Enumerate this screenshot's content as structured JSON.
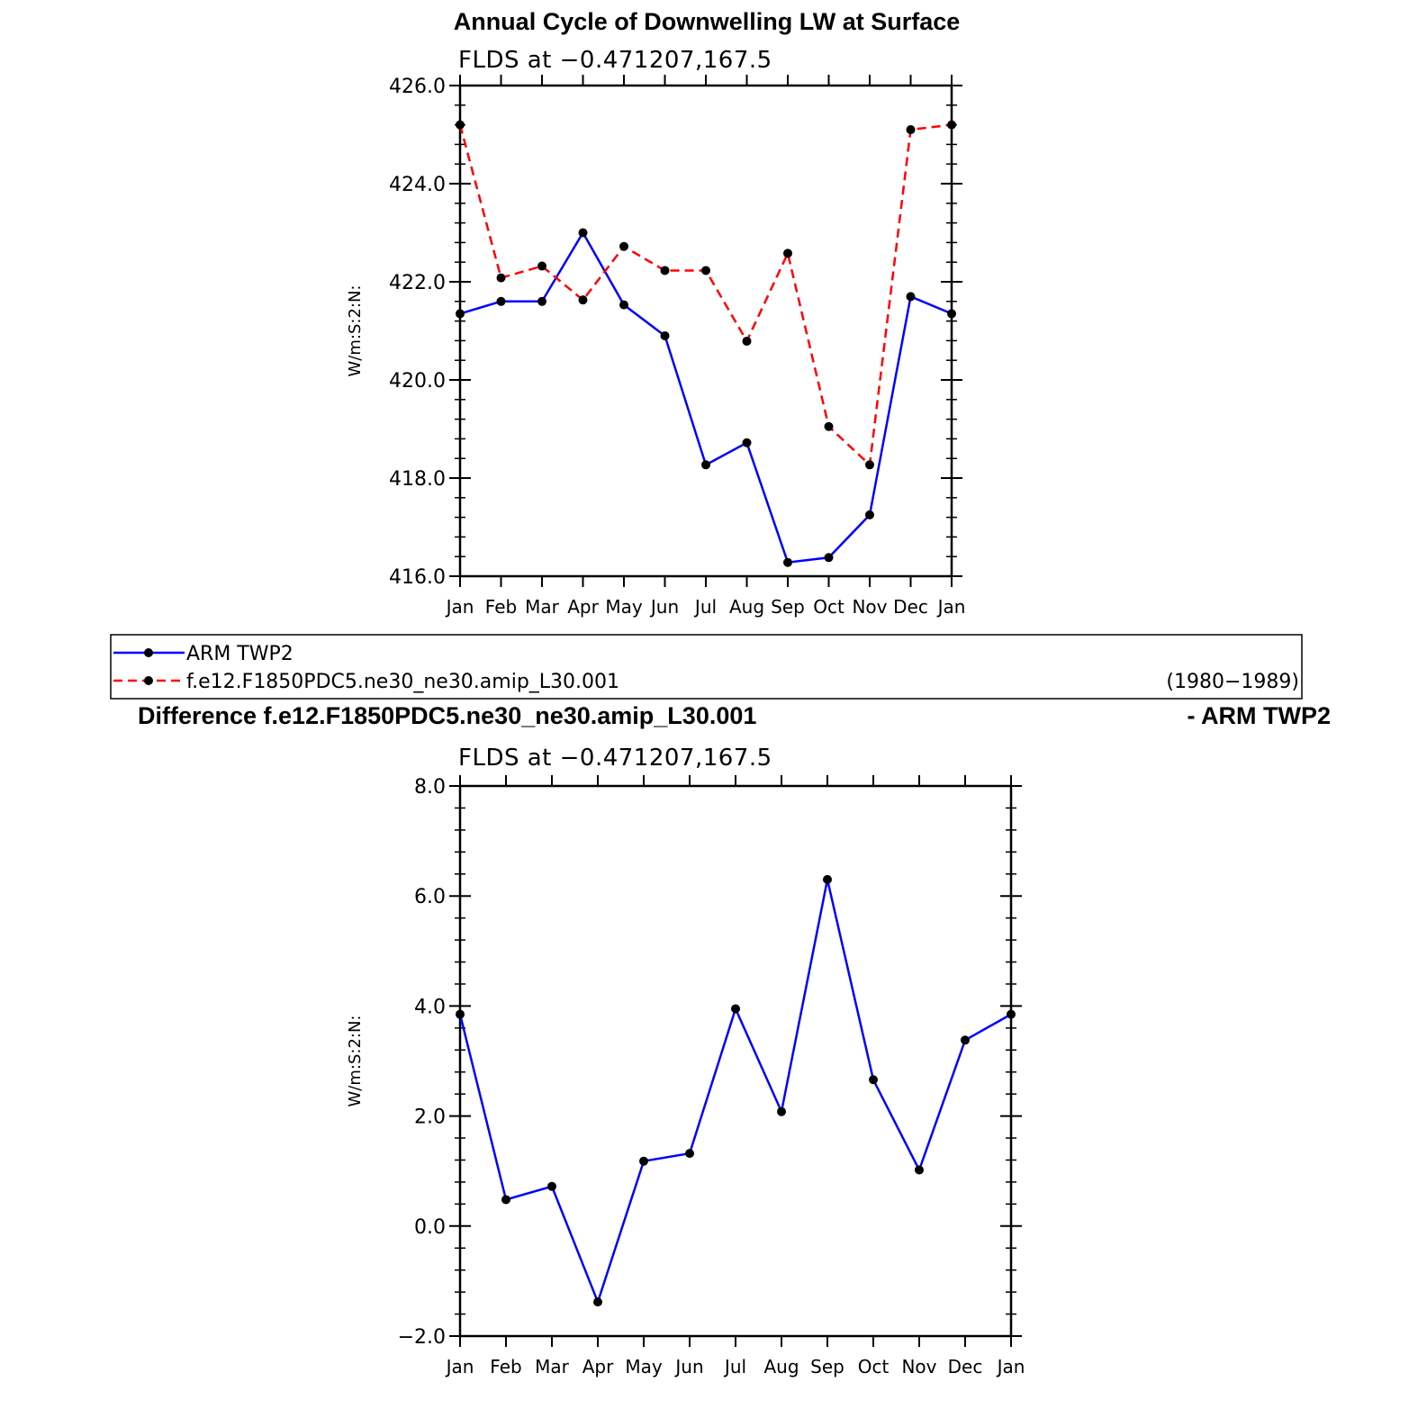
{
  "top_panel": {
    "title": "Annual Cycle of Downwelling LW at Surface",
    "subtitle": "FLDS at −0.471207,167.5"
  },
  "legend": {
    "entries": [
      {
        "label": "ARM TWP2",
        "color": "#0000ff",
        "dash": false
      },
      {
        "label": "f.e12.F1850PDC5.ne30_ne30.amip_L30.001",
        "color": "#ff0000",
        "dash": true
      }
    ],
    "period": "(1980−1989)"
  },
  "bottom_panel": {
    "title": "Difference f.e12.F1850PDC5.ne30_ne30.amip_L30.001",
    "title_right": "- ARM TWP2",
    "subtitle": "FLDS at −0.471207,167.5"
  },
  "chart_data": [
    {
      "type": "line",
      "title": "Annual Cycle of Downwelling LW at Surface",
      "subtitle": "FLDS at −0.471207,167.5",
      "categories": [
        "Jan",
        "Feb",
        "Mar",
        "Apr",
        "May",
        "Jun",
        "Jul",
        "Aug",
        "Sep",
        "Oct",
        "Nov",
        "Dec",
        "Jan"
      ],
      "ylabel": "W/m:S:2:N:",
      "ylim": [
        416,
        426
      ],
      "yticks": [
        416,
        418,
        420,
        422,
        424,
        426
      ],
      "ytick_labels": [
        "416.0",
        "418.0",
        "420.0",
        "422.0",
        "424.0",
        "426.0"
      ],
      "series": [
        {
          "name": "ARM TWP2",
          "color": "#0000ff",
          "dash": false,
          "values": [
            421.35,
            421.6,
            421.6,
            423.0,
            421.53,
            420.9,
            418.27,
            418.72,
            416.28,
            416.38,
            417.25,
            421.7,
            421.35
          ]
        },
        {
          "name": "f.e12.F1850PDC5.ne30_ne30.amip_L30.001",
          "color": "#ff0000",
          "dash": true,
          "values": [
            425.2,
            422.08,
            422.32,
            421.63,
            422.72,
            422.23,
            422.23,
            420.79,
            422.58,
            419.05,
            418.27,
            425.1,
            425.2
          ]
        }
      ],
      "legend": "below"
    },
    {
      "type": "line",
      "title": "Difference f.e12.F1850PDC5.ne30_ne30.amip_L30.001 - ARM TWP2",
      "subtitle": "FLDS at −0.471207,167.5",
      "categories": [
        "Jan",
        "Feb",
        "Mar",
        "Apr",
        "May",
        "Jun",
        "Jul",
        "Aug",
        "Sep",
        "Oct",
        "Nov",
        "Dec",
        "Jan"
      ],
      "ylabel": "W/m:S:2:N:",
      "ylim": [
        -2,
        8
      ],
      "yticks": [
        -2,
        0,
        2,
        4,
        6,
        8
      ],
      "ytick_labels": [
        "−2.0",
        "0.0",
        "2.0",
        "4.0",
        "6.0",
        "8.0"
      ],
      "series": [
        {
          "color": "#0000ff",
          "dash": false,
          "values": [
            3.85,
            0.48,
            0.72,
            -1.38,
            1.18,
            1.32,
            3.95,
            2.08,
            6.3,
            2.66,
            1.02,
            3.38,
            3.85
          ]
        }
      ]
    }
  ]
}
